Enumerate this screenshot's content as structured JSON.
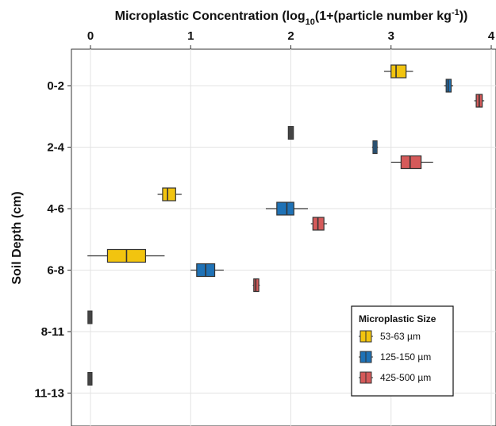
{
  "chart_data": {
    "type": "boxplot",
    "orientation": "horizontal",
    "title": "",
    "xlabel": {
      "prefix": "Microplastic Concentration (log",
      "sub": "10",
      "middle": "(1+(particle number kg",
      "sup": "-1",
      "suffix": "))"
    },
    "ylabel": "Soil Depth (cm)",
    "xlim": [
      -0.2,
      4.05
    ],
    "xticks": [
      "0",
      "1",
      "2",
      "3",
      "4"
    ],
    "x_axis_position": "top",
    "grid": true,
    "categories": [
      "0-2",
      "2-4",
      "4-6",
      "6-8",
      "8-11",
      "11-13"
    ],
    "legend": {
      "title": "Microplastic Size",
      "placement": "bottom-right"
    },
    "series": [
      {
        "name": "53-63 µm",
        "color": "#F2C40F",
        "boxes": [
          {
            "category": "0-2",
            "min": 2.93,
            "q1": 3.0,
            "median": 3.05,
            "q3": 3.15,
            "max": 3.22
          },
          {
            "category": "2-4",
            "min": 1.99,
            "q1": 1.99,
            "median": 2.0,
            "q3": 2.01,
            "max": 2.01
          },
          {
            "category": "4-6",
            "min": 0.67,
            "q1": 0.72,
            "median": 0.77,
            "q3": 0.85,
            "max": 0.91
          },
          {
            "category": "6-8",
            "min": -0.03,
            "q1": 0.17,
            "median": 0.36,
            "q3": 0.55,
            "max": 0.74
          },
          {
            "category": "8-11",
            "min": -0.01,
            "q1": -0.01,
            "median": 0.0,
            "q3": 0.0,
            "max": 0.0
          },
          {
            "category": "11-13",
            "min": -0.01,
            "q1": -0.01,
            "median": 0.0,
            "q3": 0.0,
            "max": 0.0
          }
        ]
      },
      {
        "name": "125-150 µm",
        "color": "#1F72B6",
        "boxes": [
          {
            "category": "0-2",
            "min": 3.53,
            "q1": 3.55,
            "median": 3.57,
            "q3": 3.6,
            "max": 3.62
          },
          {
            "category": "2-4",
            "min": 2.81,
            "q1": 2.82,
            "median": 2.84,
            "q3": 2.86,
            "max": 2.87
          },
          {
            "category": "4-6",
            "min": 1.75,
            "q1": 1.86,
            "median": 1.96,
            "q3": 2.03,
            "max": 2.17
          },
          {
            "category": "6-8",
            "min": 1.0,
            "q1": 1.06,
            "median": 1.15,
            "q3": 1.24,
            "max": 1.33
          }
        ]
      },
      {
        "name": "425-500 µm",
        "color": "#D55A5A",
        "boxes": [
          {
            "category": "0-2",
            "min": 3.83,
            "q1": 3.85,
            "median": 3.88,
            "q3": 3.91,
            "max": 3.93
          },
          {
            "category": "2-4",
            "min": 3.0,
            "q1": 3.1,
            "median": 3.19,
            "q3": 3.3,
            "max": 3.42
          },
          {
            "category": "4-6",
            "min": 2.2,
            "q1": 2.22,
            "median": 2.27,
            "q3": 2.33,
            "max": 2.36
          },
          {
            "category": "6-8",
            "min": 1.62,
            "q1": 1.63,
            "median": 1.65,
            "q3": 1.68,
            "max": 1.69
          }
        ]
      }
    ]
  }
}
